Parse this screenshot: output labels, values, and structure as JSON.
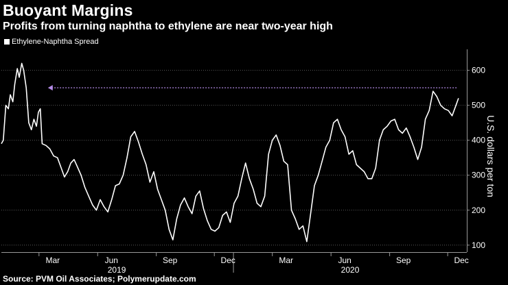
{
  "chart_data": {
    "type": "line",
    "title": "Buoyant Margins",
    "subtitle": "Profits from turning naphtha to ethylene are near two-year high",
    "ylabel": "U.S. dollars per ton",
    "ylim": [
      80,
      660
    ],
    "yticks": [
      100,
      200,
      300,
      400,
      500,
      600
    ],
    "xlim": [
      "2019-01-01",
      "2020-12-31"
    ],
    "month_ticks": [
      {
        "label": "Mar",
        "date": "2019-03-01"
      },
      {
        "label": "Jun",
        "date": "2019-06-01"
      },
      {
        "label": "Sep",
        "date": "2019-09-01"
      },
      {
        "label": "Dec",
        "date": "2019-12-01"
      },
      {
        "label": "Mar",
        "date": "2020-03-01"
      },
      {
        "label": "Jun",
        "date": "2020-06-01"
      },
      {
        "label": "Sep",
        "date": "2020-09-01"
      },
      {
        "label": "Dec",
        "date": "2020-12-01"
      }
    ],
    "year_labels": [
      {
        "label": "2019",
        "date": "2019-07-01"
      },
      {
        "label": "2020",
        "date": "2020-07-01"
      }
    ],
    "year_dividers": [
      "2019-12-31"
    ],
    "legend": "top-left",
    "grid": true,
    "series": [
      {
        "name": "Ethylene-Naphtha Spread",
        "color": "#ffffff",
        "points": [
          [
            "2019-01-01",
            390
          ],
          [
            "2019-01-04",
            400
          ],
          [
            "2019-01-08",
            500
          ],
          [
            "2019-01-12",
            490
          ],
          [
            "2019-01-15",
            530
          ],
          [
            "2019-01-19",
            510
          ],
          [
            "2019-01-22",
            560
          ],
          [
            "2019-01-26",
            605
          ],
          [
            "2019-01-29",
            580
          ],
          [
            "2019-02-02",
            620
          ],
          [
            "2019-02-05",
            600
          ],
          [
            "2019-02-09",
            550
          ],
          [
            "2019-02-13",
            450
          ],
          [
            "2019-02-17",
            430
          ],
          [
            "2019-02-21",
            460
          ],
          [
            "2019-02-25",
            440
          ],
          [
            "2019-02-28",
            480
          ],
          [
            "2019-03-03",
            490
          ],
          [
            "2019-03-06",
            390
          ],
          [
            "2019-03-12",
            385
          ],
          [
            "2019-03-18",
            375
          ],
          [
            "2019-03-24",
            355
          ],
          [
            "2019-03-30",
            350
          ],
          [
            "2019-04-05",
            320
          ],
          [
            "2019-04-10",
            295
          ],
          [
            "2019-04-15",
            310
          ],
          [
            "2019-04-20",
            335
          ],
          [
            "2019-04-25",
            345
          ],
          [
            "2019-04-30",
            325
          ],
          [
            "2019-05-06",
            300
          ],
          [
            "2019-05-12",
            265
          ],
          [
            "2019-05-18",
            240
          ],
          [
            "2019-05-24",
            215
          ],
          [
            "2019-05-30",
            200
          ],
          [
            "2019-06-05",
            230
          ],
          [
            "2019-06-11",
            210
          ],
          [
            "2019-06-17",
            195
          ],
          [
            "2019-06-23",
            230
          ],
          [
            "2019-06-29",
            270
          ],
          [
            "2019-07-05",
            275
          ],
          [
            "2019-07-11",
            300
          ],
          [
            "2019-07-17",
            350
          ],
          [
            "2019-07-23",
            410
          ],
          [
            "2019-07-29",
            425
          ],
          [
            "2019-08-04",
            395
          ],
          [
            "2019-08-10",
            360
          ],
          [
            "2019-08-16",
            330
          ],
          [
            "2019-08-22",
            280
          ],
          [
            "2019-08-28",
            310
          ],
          [
            "2019-09-03",
            260
          ],
          [
            "2019-09-09",
            230
          ],
          [
            "2019-09-15",
            200
          ],
          [
            "2019-09-21",
            145
          ],
          [
            "2019-09-27",
            115
          ],
          [
            "2019-10-03",
            175
          ],
          [
            "2019-10-09",
            215
          ],
          [
            "2019-10-15",
            235
          ],
          [
            "2019-10-21",
            210
          ],
          [
            "2019-10-27",
            190
          ],
          [
            "2019-11-02",
            240
          ],
          [
            "2019-11-08",
            255
          ],
          [
            "2019-11-14",
            205
          ],
          [
            "2019-11-20",
            170
          ],
          [
            "2019-11-26",
            145
          ],
          [
            "2019-12-02",
            140
          ],
          [
            "2019-12-08",
            150
          ],
          [
            "2019-12-14",
            185
          ],
          [
            "2019-12-20",
            195
          ],
          [
            "2019-12-26",
            165
          ],
          [
            "2020-01-01",
            220
          ],
          [
            "2020-01-07",
            240
          ],
          [
            "2020-01-13",
            290
          ],
          [
            "2020-01-19",
            335
          ],
          [
            "2020-01-25",
            290
          ],
          [
            "2020-01-31",
            260
          ],
          [
            "2020-02-06",
            220
          ],
          [
            "2020-02-12",
            210
          ],
          [
            "2020-02-18",
            240
          ],
          [
            "2020-02-24",
            360
          ],
          [
            "2020-03-01",
            400
          ],
          [
            "2020-03-07",
            415
          ],
          [
            "2020-03-13",
            385
          ],
          [
            "2020-03-19",
            340
          ],
          [
            "2020-03-25",
            330
          ],
          [
            "2020-03-31",
            200
          ],
          [
            "2020-04-06",
            175
          ],
          [
            "2020-04-12",
            145
          ],
          [
            "2020-04-18",
            155
          ],
          [
            "2020-04-24",
            110
          ],
          [
            "2020-04-30",
            190
          ],
          [
            "2020-05-06",
            270
          ],
          [
            "2020-05-12",
            300
          ],
          [
            "2020-05-18",
            340
          ],
          [
            "2020-05-24",
            380
          ],
          [
            "2020-05-30",
            400
          ],
          [
            "2020-06-05",
            450
          ],
          [
            "2020-06-11",
            460
          ],
          [
            "2020-06-17",
            430
          ],
          [
            "2020-06-23",
            410
          ],
          [
            "2020-06-29",
            360
          ],
          [
            "2020-07-05",
            370
          ],
          [
            "2020-07-11",
            330
          ],
          [
            "2020-07-17",
            320
          ],
          [
            "2020-07-23",
            310
          ],
          [
            "2020-07-29",
            290
          ],
          [
            "2020-08-04",
            290
          ],
          [
            "2020-08-10",
            320
          ],
          [
            "2020-08-16",
            400
          ],
          [
            "2020-08-22",
            430
          ],
          [
            "2020-08-28",
            440
          ],
          [
            "2020-09-03",
            455
          ],
          [
            "2020-09-09",
            460
          ],
          [
            "2020-09-15",
            430
          ],
          [
            "2020-09-21",
            420
          ],
          [
            "2020-09-27",
            435
          ],
          [
            "2020-10-03",
            410
          ],
          [
            "2020-10-09",
            380
          ],
          [
            "2020-10-15",
            345
          ],
          [
            "2020-10-21",
            380
          ],
          [
            "2020-10-27",
            460
          ],
          [
            "2020-11-02",
            485
          ],
          [
            "2020-11-08",
            540
          ],
          [
            "2020-11-14",
            525
          ],
          [
            "2020-11-20",
            500
          ],
          [
            "2020-11-26",
            490
          ],
          [
            "2020-12-02",
            485
          ],
          [
            "2020-12-08",
            470
          ],
          [
            "2020-12-14",
            500
          ],
          [
            "2020-12-18",
            520
          ]
        ]
      }
    ],
    "annotations": [
      {
        "type": "arrow",
        "from": "2020-12-15",
        "to": "2019-03-15",
        "y": 550,
        "color": "#b48be6"
      }
    ]
  },
  "source": "Source: PVM Oil Associates; Polymerupdate.com"
}
